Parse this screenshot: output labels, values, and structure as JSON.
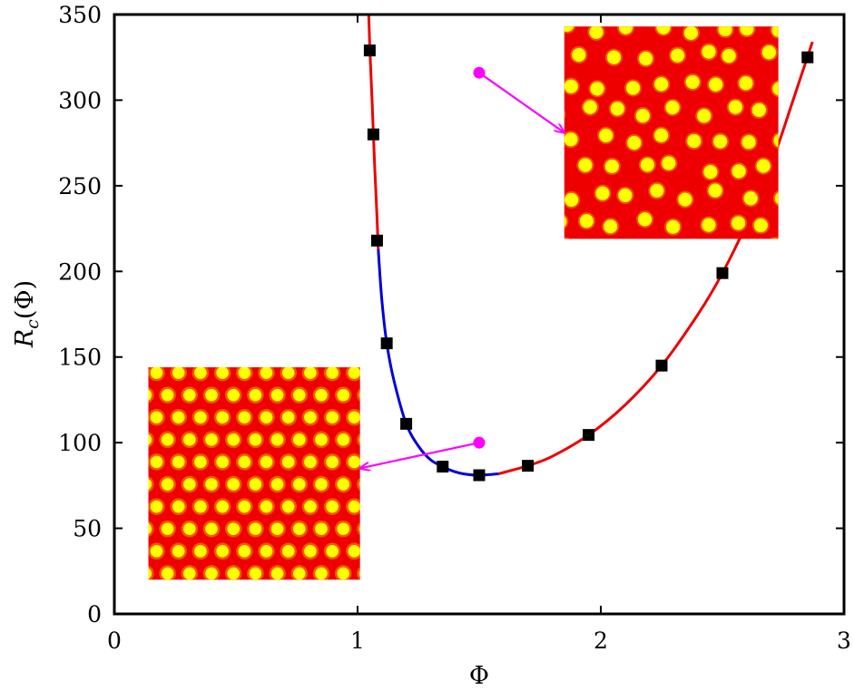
{
  "chart_data": {
    "type": "scatter",
    "xlabel": "Φ",
    "ylabel": "R_c(Φ)",
    "ylabel_main": "R",
    "ylabel_sub": "c",
    "ylabel_arg": "(Φ)",
    "xlim": [
      0,
      3
    ],
    "ylim": [
      0,
      350
    ],
    "x_ticks": [
      0,
      1,
      2,
      3
    ],
    "y_ticks": [
      0,
      50,
      100,
      150,
      200,
      250,
      300,
      350
    ],
    "grid": false,
    "legend": "none",
    "series": [
      {
        "kind": "markers",
        "marker": "square",
        "color": "#000000",
        "points": [
          {
            "x": 1.05,
            "y": 329
          },
          {
            "x": 1.065,
            "y": 280
          },
          {
            "x": 1.08,
            "y": 218
          },
          {
            "x": 1.12,
            "y": 158
          },
          {
            "x": 1.2,
            "y": 111
          },
          {
            "x": 1.35,
            "y": 86
          },
          {
            "x": 1.5,
            "y": 81
          },
          {
            "x": 1.7,
            "y": 86.5
          },
          {
            "x": 1.95,
            "y": 104.5
          },
          {
            "x": 2.25,
            "y": 145
          },
          {
            "x": 2.5,
            "y": 199
          },
          {
            "x": 2.85,
            "y": 325
          }
        ]
      },
      {
        "kind": "curve",
        "color": "#ee0000",
        "points": [
          [
            1.046,
            350
          ],
          [
            1.05,
            332
          ],
          [
            1.06,
            298
          ],
          [
            1.07,
            262
          ],
          [
            1.08,
            232
          ],
          [
            1.085,
            213
          ]
        ]
      },
      {
        "kind": "curve",
        "color": "#0000dd",
        "points": [
          [
            1.085,
            213
          ],
          [
            1.1,
            183
          ],
          [
            1.12,
            158
          ],
          [
            1.15,
            136
          ],
          [
            1.2,
            111
          ],
          [
            1.25,
            98
          ],
          [
            1.3,
            90
          ],
          [
            1.35,
            86
          ],
          [
            1.4,
            83
          ],
          [
            1.45,
            81.5
          ],
          [
            1.5,
            81
          ],
          [
            1.58,
            81.8
          ]
        ]
      },
      {
        "kind": "curve",
        "color": "#ee0000",
        "points": [
          [
            1.58,
            81.8
          ],
          [
            1.7,
            86.5
          ],
          [
            1.8,
            92
          ],
          [
            1.95,
            104.5
          ],
          [
            2.1,
            122
          ],
          [
            2.25,
            145
          ],
          [
            2.4,
            175
          ],
          [
            2.5,
            199
          ],
          [
            2.6,
            228
          ],
          [
            2.7,
            262
          ],
          [
            2.8,
            304
          ],
          [
            2.87,
            334
          ]
        ]
      }
    ],
    "annotations": [
      {
        "kind": "arrow",
        "color": "#ff00ff",
        "from": {
          "x": 1.5,
          "y": 316
        },
        "to": {
          "x": 1.85,
          "y": 281
        },
        "target": "upper-inset"
      },
      {
        "kind": "arrow",
        "color": "#ff00ff",
        "from": {
          "x": 1.5,
          "y": 100
        },
        "to": {
          "x": 1.01,
          "y": 85
        },
        "target": "lower-inset"
      }
    ],
    "insets": [
      {
        "name": "upper-inset",
        "description": "sparse yellow spots on red background",
        "background": "#ee0000",
        "spot_color": "#ffff00",
        "extent": {
          "x": [
            1.85,
            2.73
          ],
          "y": [
            219,
            343
          ]
        }
      },
      {
        "name": "lower-inset",
        "description": "dense hexagonal lattice of yellow spots on red background",
        "background": "#ee0000",
        "spot_color": "#ffff00",
        "extent": {
          "x": [
            0.14,
            1.01
          ],
          "y": [
            20,
            144
          ]
        }
      }
    ]
  }
}
